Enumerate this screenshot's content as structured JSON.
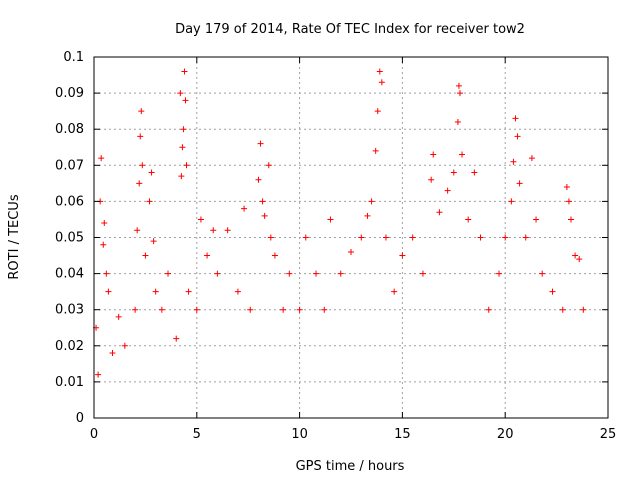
{
  "chart_data": {
    "type": "scatter",
    "title": "Day 179 of 2014, Rate Of TEC Index for receiver tow2",
    "xlabel": "GPS time / hours",
    "ylabel": "ROTI / TECUs",
    "xlim": [
      0,
      25
    ],
    "ylim": [
      0,
      0.1
    ],
    "x_ticks": [
      "0",
      "5",
      "10",
      "15",
      "20",
      "25"
    ],
    "x_tick_values": [
      0,
      5,
      10,
      15,
      20,
      25
    ],
    "y_ticks": [
      "0",
      "0.01",
      "0.02",
      "0.03",
      "0.04",
      "0.05",
      "0.06",
      "0.07",
      "0.08",
      "0.09",
      "0.1"
    ],
    "y_tick_values": [
      0,
      0.01,
      0.02,
      0.03,
      0.04,
      0.05,
      0.06,
      0.07,
      0.08,
      0.09,
      0.1
    ],
    "grid": true,
    "marker": "+",
    "marker_color": "#ff0000",
    "series": [
      {
        "name": "ROTI",
        "points": [
          [
            0.1,
            0.025
          ],
          [
            0.2,
            0.012
          ],
          [
            0.3,
            0.06
          ],
          [
            0.35,
            0.072
          ],
          [
            0.45,
            0.048
          ],
          [
            0.5,
            0.054
          ],
          [
            0.6,
            0.04
          ],
          [
            0.7,
            0.035
          ],
          [
            0.9,
            0.018
          ],
          [
            1.2,
            0.028
          ],
          [
            1.5,
            0.02
          ],
          [
            2.0,
            0.03
          ],
          [
            2.1,
            0.052
          ],
          [
            2.2,
            0.065
          ],
          [
            2.25,
            0.078
          ],
          [
            2.3,
            0.085
          ],
          [
            2.35,
            0.07
          ],
          [
            2.5,
            0.045
          ],
          [
            2.7,
            0.06
          ],
          [
            2.8,
            0.068
          ],
          [
            2.9,
            0.049
          ],
          [
            3.0,
            0.035
          ],
          [
            3.3,
            0.03
          ],
          [
            3.6,
            0.04
          ],
          [
            4.0,
            0.022
          ],
          [
            4.2,
            0.09
          ],
          [
            4.25,
            0.067
          ],
          [
            4.3,
            0.075
          ],
          [
            4.35,
            0.08
          ],
          [
            4.4,
            0.096
          ],
          [
            4.45,
            0.088
          ],
          [
            4.5,
            0.07
          ],
          [
            4.6,
            0.035
          ],
          [
            5.0,
            0.03
          ],
          [
            5.2,
            0.055
          ],
          [
            5.5,
            0.045
          ],
          [
            5.8,
            0.052
          ],
          [
            6.0,
            0.04
          ],
          [
            6.5,
            0.052
          ],
          [
            7.0,
            0.035
          ],
          [
            7.3,
            0.058
          ],
          [
            7.6,
            0.03
          ],
          [
            8.0,
            0.066
          ],
          [
            8.1,
            0.076
          ],
          [
            8.2,
            0.06
          ],
          [
            8.3,
            0.056
          ],
          [
            8.5,
            0.07
          ],
          [
            8.6,
            0.05
          ],
          [
            8.8,
            0.045
          ],
          [
            9.2,
            0.03
          ],
          [
            9.5,
            0.04
          ],
          [
            10.0,
            0.03
          ],
          [
            10.3,
            0.05
          ],
          [
            10.8,
            0.04
          ],
          [
            11.2,
            0.03
          ],
          [
            11.5,
            0.055
          ],
          [
            12.0,
            0.04
          ],
          [
            12.5,
            0.046
          ],
          [
            13.0,
            0.05
          ],
          [
            13.3,
            0.056
          ],
          [
            13.5,
            0.06
          ],
          [
            13.7,
            0.074
          ],
          [
            13.8,
            0.085
          ],
          [
            13.9,
            0.096
          ],
          [
            14.0,
            0.093
          ],
          [
            14.2,
            0.05
          ],
          [
            14.6,
            0.035
          ],
          [
            15.0,
            0.045
          ],
          [
            15.5,
            0.05
          ],
          [
            16.0,
            0.04
          ],
          [
            16.4,
            0.066
          ],
          [
            16.5,
            0.073
          ],
          [
            16.8,
            0.057
          ],
          [
            17.2,
            0.063
          ],
          [
            17.5,
            0.068
          ],
          [
            17.7,
            0.082
          ],
          [
            17.75,
            0.092
          ],
          [
            17.8,
            0.09
          ],
          [
            17.9,
            0.073
          ],
          [
            18.2,
            0.055
          ],
          [
            18.5,
            0.068
          ],
          [
            18.8,
            0.05
          ],
          [
            19.2,
            0.03
          ],
          [
            19.7,
            0.04
          ],
          [
            20.0,
            0.05
          ],
          [
            20.3,
            0.06
          ],
          [
            20.4,
            0.071
          ],
          [
            20.5,
            0.083
          ],
          [
            20.6,
            0.078
          ],
          [
            20.7,
            0.065
          ],
          [
            21.0,
            0.05
          ],
          [
            21.3,
            0.072
          ],
          [
            21.5,
            0.055
          ],
          [
            21.8,
            0.04
          ],
          [
            22.3,
            0.035
          ],
          [
            22.8,
            0.03
          ],
          [
            23.0,
            0.064
          ],
          [
            23.1,
            0.06
          ],
          [
            23.2,
            0.055
          ],
          [
            23.4,
            0.045
          ],
          [
            23.6,
            0.044
          ],
          [
            23.8,
            0.03
          ]
        ]
      }
    ]
  }
}
